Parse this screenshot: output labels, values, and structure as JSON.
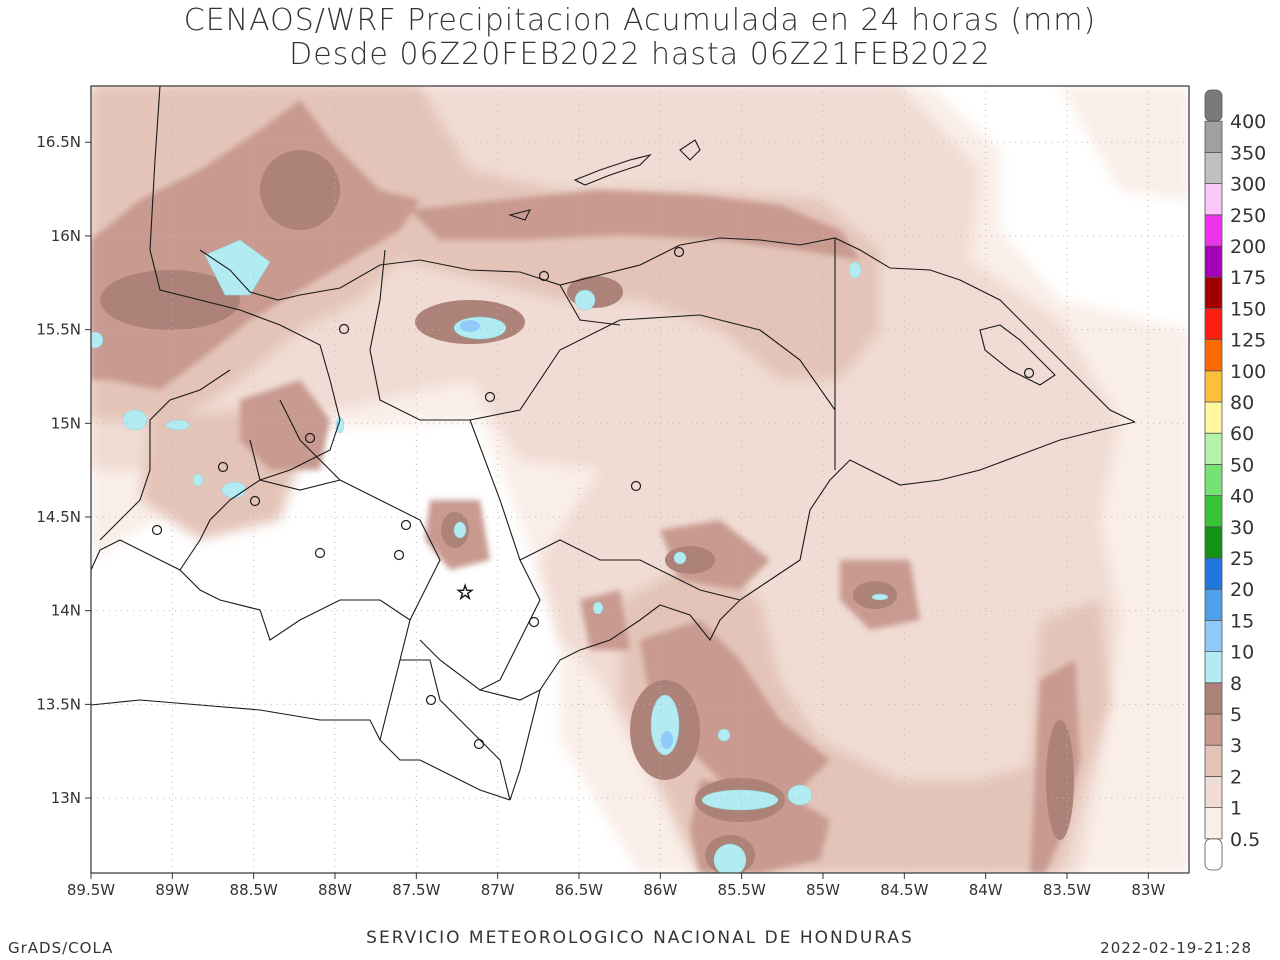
{
  "title": {
    "line1": "CENAOS/WRF Precipitacion Acumulada en 24 horas (mm)",
    "line2": "Desde 06Z20FEB2022 hasta 06Z21FEB2022"
  },
  "map": {
    "lon_range": [
      -89.5,
      -82.75
    ],
    "lat_range": [
      12.6,
      16.8
    ],
    "x_ticks": [
      {
        "lon": -89.5,
        "label": "89.5W"
      },
      {
        "lon": -89.0,
        "label": "89W"
      },
      {
        "lon": -88.5,
        "label": "88.5W"
      },
      {
        "lon": -88.0,
        "label": "88W"
      },
      {
        "lon": -87.5,
        "label": "87.5W"
      },
      {
        "lon": -87.0,
        "label": "87W"
      },
      {
        "lon": -86.5,
        "label": "86.5W"
      },
      {
        "lon": -86.0,
        "label": "86W"
      },
      {
        "lon": -85.5,
        "label": "85.5W"
      },
      {
        "lon": -85.0,
        "label": "85W"
      },
      {
        "lon": -84.5,
        "label": "84.5W"
      },
      {
        "lon": -84.0,
        "label": "84W"
      },
      {
        "lon": -83.5,
        "label": "83.5W"
      },
      {
        "lon": -83.0,
        "label": "83W"
      }
    ],
    "y_ticks": [
      {
        "lat": 16.5,
        "label": "16.5N"
      },
      {
        "lat": 16.0,
        "label": "16N"
      },
      {
        "lat": 15.5,
        "label": "15.5N"
      },
      {
        "lat": 15.0,
        "label": "15N"
      },
      {
        "lat": 14.5,
        "label": "14.5N"
      },
      {
        "lat": 14.0,
        "label": "14N"
      },
      {
        "lat": 13.5,
        "label": "13.5N"
      },
      {
        "lat": 13.0,
        "label": "13N"
      }
    ],
    "grid": true,
    "capital_marker": {
      "lon": -87.2,
      "lat": 14.1,
      "symbol": "☆"
    }
  },
  "colorbar": {
    "levels": [
      {
        "label": "0.5",
        "color": "#ffffff"
      },
      {
        "label": "1",
        "color": "#faeee8"
      },
      {
        "label": "2",
        "color": "#f0dcd4"
      },
      {
        "label": "3",
        "color": "#e4c4b8"
      },
      {
        "label": "5",
        "color": "#c89a90"
      },
      {
        "label": "8",
        "color": "#ad8379"
      },
      {
        "label": "10",
        "color": "#b2ebf2"
      },
      {
        "label": "15",
        "color": "#90caf9"
      },
      {
        "label": "20",
        "color": "#4ea0ea"
      },
      {
        "label": "25",
        "color": "#2176e0"
      },
      {
        "label": "30",
        "color": "#139213"
      },
      {
        "label": "40",
        "color": "#38c438"
      },
      {
        "label": "50",
        "color": "#76e276"
      },
      {
        "label": "60",
        "color": "#b5f2a8"
      },
      {
        "label": "80",
        "color": "#fff7a0"
      },
      {
        "label": "100",
        "color": "#fbbf3c"
      },
      {
        "label": "125",
        "color": "#fd6a02"
      },
      {
        "label": "150",
        "color": "#fd1e12"
      },
      {
        "label": "175",
        "color": "#a20000"
      },
      {
        "label": "200",
        "color": "#a600b6"
      },
      {
        "label": "250",
        "color": "#ee33ee"
      },
      {
        "label": "300",
        "color": "#fbc6f8"
      },
      {
        "label": "350",
        "color": "#c0c0c0"
      },
      {
        "label": "400",
        "color": "#a0a0a0"
      },
      {
        "label": "",
        "color": "#7a7a7a"
      }
    ]
  },
  "footer": {
    "left": "GrADS/COLA",
    "center": "SERVICIO METEOROLOGICO NACIONAL DE HONDURAS",
    "right": "2022-02-19-21:28"
  }
}
